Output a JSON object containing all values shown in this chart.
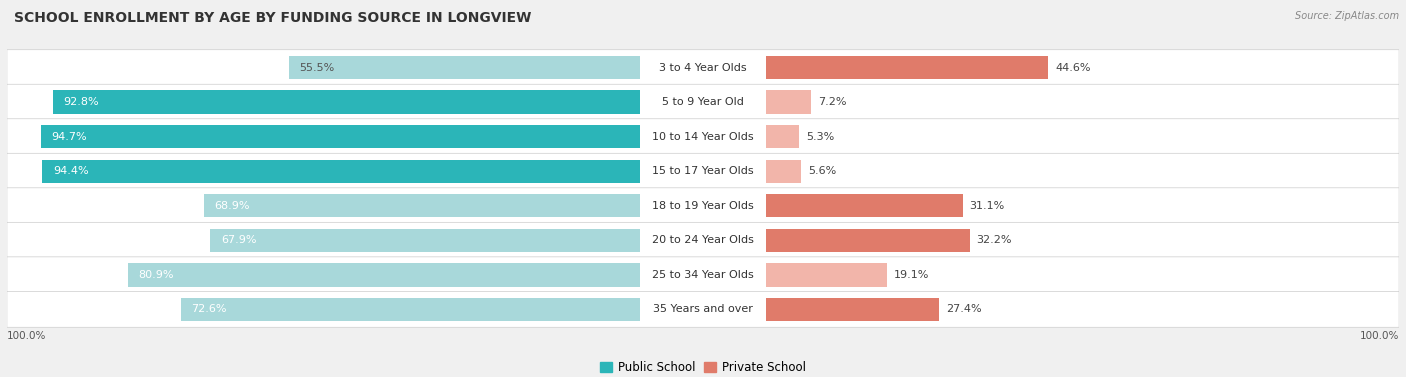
{
  "title": "SCHOOL ENROLLMENT BY AGE BY FUNDING SOURCE IN LONGVIEW",
  "source": "Source: ZipAtlas.com",
  "categories": [
    "3 to 4 Year Olds",
    "5 to 9 Year Old",
    "10 to 14 Year Olds",
    "15 to 17 Year Olds",
    "18 to 19 Year Olds",
    "20 to 24 Year Olds",
    "25 to 34 Year Olds",
    "35 Years and over"
  ],
  "public_values": [
    55.5,
    92.8,
    94.7,
    94.4,
    68.9,
    67.9,
    80.9,
    72.6
  ],
  "private_values": [
    44.6,
    7.2,
    5.3,
    5.6,
    31.1,
    32.2,
    19.1,
    27.4
  ],
  "public_colors": [
    "#a8d8da",
    "#2bb5b8",
    "#2bb5b8",
    "#2bb5b8",
    "#a8d8da",
    "#a8d8da",
    "#a8d8da",
    "#a8d8da"
  ],
  "private_colors": [
    "#e07b6a",
    "#f2b5aa",
    "#f2b5aa",
    "#f2b5aa",
    "#e07b6a",
    "#e07b6a",
    "#f2b5aa",
    "#e07b6a"
  ],
  "pub_label_color": [
    "#555555",
    "#ffffff",
    "#ffffff",
    "#ffffff",
    "#ffffff",
    "#ffffff",
    "#ffffff",
    "#ffffff"
  ],
  "background_color": "#f0f0f0",
  "row_bg_color": "#ffffff",
  "bar_height": 0.68,
  "title_fontsize": 10,
  "legend_fontsize": 8.5,
  "value_fontsize": 8,
  "cat_fontsize": 8,
  "axis_label_fontsize": 7.5
}
